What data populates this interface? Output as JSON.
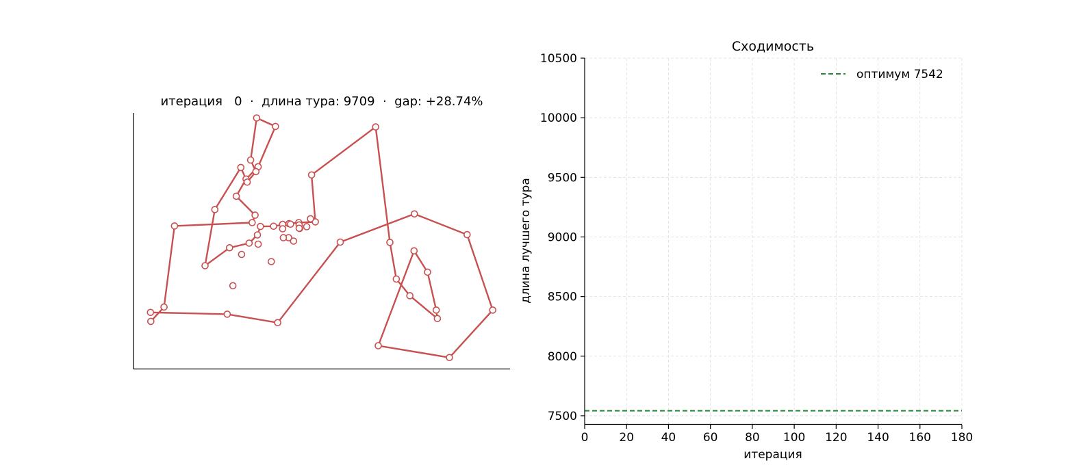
{
  "colors": {
    "tour": "#c85050",
    "optimum": "#228833",
    "grid": "#dddddd",
    "axis": "#000000"
  },
  "chart_data": [
    {
      "type": "scatter",
      "title": "итерация   0  ·  длина тура: 9709  ·  gap: +28.74%",
      "xlabel": "",
      "ylabel": "",
      "xlim": [
        0,
        1000
      ],
      "ylim": [
        0,
        1000
      ],
      "ticks_visible": false,
      "grid": false,
      "tour_closed": false,
      "points": [
        [
          46,
          187
        ],
        [
          81,
          243
        ],
        [
          109,
          559
        ],
        [
          315,
          572
        ],
        [
          323,
          601
        ],
        [
          273,
          675
        ],
        [
          299,
          742
        ],
        [
          331,
          790
        ],
        [
          377,
          947
        ],
        [
          327,
          980
        ],
        [
          311,
          816
        ],
        [
          325,
          771
        ],
        [
          302,
          730
        ],
        [
          285,
          787
        ],
        [
          216,
          623
        ],
        [
          190,
          404
        ],
        [
          255,
          474
        ],
        [
          307,
          492
        ],
        [
          329,
          524
        ],
        [
          337,
          557
        ],
        [
          372,
          558
        ],
        [
          413,
          568
        ],
        [
          439,
          572
        ],
        [
          483,
          575
        ],
        [
          473,
          758
        ],
        [
          643,
          945
        ],
        [
          681,
          495
        ],
        [
          698,
          352
        ],
        [
          734,
          287
        ],
        [
          807,
          198
        ],
        [
          804,
          231
        ],
        [
          781,
          379
        ],
        [
          745,
          462
        ],
        [
          650,
          92
        ],
        [
          839,
          46
        ],
        [
          954,
          231
        ],
        [
          886,
          525
        ],
        [
          746,
          606
        ],
        [
          549,
          496
        ],
        [
          383,
          182
        ],
        [
          249,
          215
        ],
        [
          45,
          222
        ]
      ],
      "extra_points": [
        [
          396,
          565
        ],
        [
          417,
          566
        ],
        [
          396,
          548
        ],
        [
          441,
          549
        ],
        [
          440,
          563
        ],
        [
          460,
          556
        ],
        [
          440,
          550
        ],
        [
          412,
          513
        ],
        [
          425,
          500
        ],
        [
          398,
          513
        ],
        [
          366,
          420
        ],
        [
          470,
          587
        ],
        [
          287,
          448
        ],
        [
          331,
          488
        ],
        [
          264,
          326
        ]
      ]
    },
    {
      "type": "line",
      "title": "Сходимость",
      "xlabel": "итерация",
      "ylabel": "длина лучшего тура",
      "xlim": [
        0,
        180
      ],
      "ylim": [
        7425,
        10500
      ],
      "xticks": [
        "0",
        "20",
        "40",
        "60",
        "80",
        "100",
        "120",
        "140",
        "160",
        "180"
      ],
      "yticks": [
        "7500",
        "8000",
        "8500",
        "9000",
        "9500",
        "10000",
        "10500"
      ],
      "grid": true,
      "legend_position": "top-right",
      "series": [
        {
          "name": "оптимум 7542",
          "style": "dashed",
          "x": [
            0,
            180
          ],
          "y": [
            7542,
            7542
          ]
        }
      ]
    }
  ]
}
